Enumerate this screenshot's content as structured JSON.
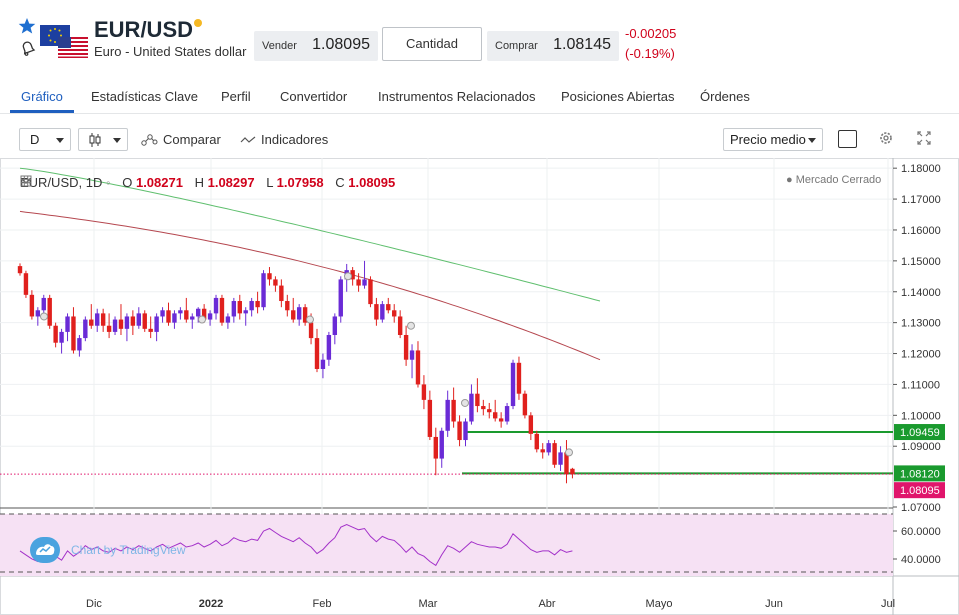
{
  "header": {
    "symbol": "EUR/USD",
    "description": "Euro - United States dollar",
    "sell_label": "Vender",
    "sell_price": "1.08095",
    "quantity_label": "Cantidad",
    "buy_label": "Comprar",
    "buy_price": "1.08145",
    "change_abs": "-0.00205",
    "change_pct": "(-0.19%)",
    "status_dot_color": "#f5b823"
  },
  "tabs": [
    {
      "label": "Gráfico",
      "active": true
    },
    {
      "label": "Estadísticas Clave"
    },
    {
      "label": "Perfil"
    },
    {
      "label": "Convertidor"
    },
    {
      "label": "Instrumentos Relacionados"
    },
    {
      "label": "Posiciones Abiertas"
    },
    {
      "label": "Órdenes"
    }
  ],
  "toolbar": {
    "interval": "D",
    "compare_label": "Comparar",
    "indicators_label": "Indicadores",
    "price_type": "Precio medio"
  },
  "chart_legend": {
    "title": "EUR/USD, 1D",
    "o_key": "O",
    "o_val": "1.08271",
    "h_key": "H",
    "h_val": "1.08297",
    "l_key": "L",
    "l_val": "1.07958",
    "c_key": "C",
    "c_val": "1.08095",
    "market_status": "● Mercado Cerrado",
    "watermark": "Chart by TradingView"
  },
  "chart_data": {
    "type": "candlestick",
    "y_axis_ticks": [
      "1.18000",
      "1.17000",
      "1.16000",
      "1.15000",
      "1.14000",
      "1.13000",
      "1.12000",
      "1.11000",
      "1.10000",
      "1.09000",
      "1.07000"
    ],
    "price_labels": [
      {
        "value": "1.09459",
        "color": "#1a9a2e"
      },
      {
        "value": "1.08120",
        "color": "#1a9a2e"
      },
      {
        "value": "1.08095",
        "color": "#e0156b"
      }
    ],
    "rsi_ticks": [
      "60.0000",
      "40.0000"
    ],
    "x_labels": [
      "Dic",
      "2022",
      "Feb",
      "Mar",
      "Abr",
      "Mayo",
      "Jun",
      "Jul"
    ],
    "ylim": [
      1.07,
      1.182
    ],
    "candles": [
      [
        1.1483,
        1.1492,
        1.1452,
        1.146
      ],
      [
        1.146,
        1.1468,
        1.138,
        1.139
      ],
      [
        1.139,
        1.1405,
        1.131,
        1.132
      ],
      [
        1.132,
        1.135,
        1.129,
        1.134
      ],
      [
        1.134,
        1.139,
        1.132,
        1.138
      ],
      [
        1.138,
        1.139,
        1.128,
        1.129
      ],
      [
        1.129,
        1.13,
        1.122,
        1.1235
      ],
      [
        1.1235,
        1.128,
        1.12,
        1.127
      ],
      [
        1.127,
        1.133,
        1.124,
        1.132
      ],
      [
        1.132,
        1.135,
        1.12,
        1.121
      ],
      [
        1.121,
        1.126,
        1.119,
        1.125
      ],
      [
        1.125,
        1.132,
        1.124,
        1.131
      ],
      [
        1.131,
        1.136,
        1.128,
        1.129
      ],
      [
        1.129,
        1.1345,
        1.127,
        1.133
      ],
      [
        1.133,
        1.1345,
        1.127,
        1.129
      ],
      [
        1.129,
        1.133,
        1.125,
        1.127
      ],
      [
        1.127,
        1.132,
        1.126,
        1.131
      ],
      [
        1.131,
        1.136,
        1.126,
        1.128
      ],
      [
        1.128,
        1.133,
        1.124,
        1.132
      ],
      [
        1.132,
        1.134,
        1.126,
        1.129
      ],
      [
        1.129,
        1.135,
        1.128,
        1.133
      ],
      [
        1.133,
        1.134,
        1.127,
        1.128
      ],
      [
        1.128,
        1.132,
        1.125,
        1.127
      ],
      [
        1.127,
        1.133,
        1.124,
        1.132
      ],
      [
        1.132,
        1.135,
        1.13,
        1.134
      ],
      [
        1.134,
        1.1365,
        1.129,
        1.13
      ],
      [
        1.13,
        1.134,
        1.128,
        1.133
      ],
      [
        1.133,
        1.135,
        1.131,
        1.134
      ],
      [
        1.134,
        1.138,
        1.13,
        1.131
      ],
      [
        1.131,
        1.133,
        1.128,
        1.132
      ],
      [
        1.132,
        1.135,
        1.13,
        1.1345
      ],
      [
        1.1345,
        1.136,
        1.13,
        1.131
      ],
      [
        1.131,
        1.134,
        1.129,
        1.133
      ],
      [
        1.133,
        1.139,
        1.131,
        1.138
      ],
      [
        1.138,
        1.139,
        1.129,
        1.13
      ],
      [
        1.13,
        1.133,
        1.128,
        1.132
      ],
      [
        1.132,
        1.138,
        1.13,
        1.137
      ],
      [
        1.137,
        1.139,
        1.131,
        1.133
      ],
      [
        1.133,
        1.135,
        1.129,
        1.134
      ],
      [
        1.134,
        1.138,
        1.132,
        1.137
      ],
      [
        1.137,
        1.14,
        1.133,
        1.135
      ],
      [
        1.135,
        1.147,
        1.134,
        1.146
      ],
      [
        1.146,
        1.148,
        1.142,
        1.144
      ],
      [
        1.144,
        1.145,
        1.14,
        1.142
      ],
      [
        1.142,
        1.144,
        1.135,
        1.137
      ],
      [
        1.137,
        1.139,
        1.132,
        1.134
      ],
      [
        1.134,
        1.138,
        1.13,
        1.131
      ],
      [
        1.131,
        1.136,
        1.129,
        1.135
      ],
      [
        1.135,
        1.136,
        1.129,
        1.13
      ],
      [
        1.13,
        1.133,
        1.123,
        1.125
      ],
      [
        1.125,
        1.128,
        1.114,
        1.115
      ],
      [
        1.115,
        1.12,
        1.112,
        1.118
      ],
      [
        1.118,
        1.127,
        1.116,
        1.126
      ],
      [
        1.126,
        1.133,
        1.123,
        1.132
      ],
      [
        1.132,
        1.145,
        1.13,
        1.144
      ],
      [
        1.144,
        1.149,
        1.14,
        1.147
      ],
      [
        1.147,
        1.148,
        1.142,
        1.144
      ],
      [
        1.144,
        1.146,
        1.14,
        1.142
      ],
      [
        1.142,
        1.15,
        1.141,
        1.144
      ],
      [
        1.144,
        1.145,
        1.135,
        1.136
      ],
      [
        1.136,
        1.138,
        1.129,
        1.131
      ],
      [
        1.131,
        1.137,
        1.13,
        1.136
      ],
      [
        1.136,
        1.138,
        1.133,
        1.134
      ],
      [
        1.134,
        1.136,
        1.13,
        1.132
      ],
      [
        1.132,
        1.134,
        1.125,
        1.126
      ],
      [
        1.126,
        1.129,
        1.116,
        1.118
      ],
      [
        1.118,
        1.123,
        1.112,
        1.121
      ],
      [
        1.121,
        1.124,
        1.109,
        1.11
      ],
      [
        1.11,
        1.113,
        1.102,
        1.105
      ],
      [
        1.105,
        1.108,
        1.092,
        1.093
      ],
      [
        1.093,
        1.096,
        1.0806,
        1.086
      ],
      [
        1.086,
        1.096,
        1.083,
        1.095
      ],
      [
        1.095,
        1.108,
        1.093,
        1.105
      ],
      [
        1.105,
        1.109,
        1.096,
        1.098
      ],
      [
        1.098,
        1.1,
        1.09,
        1.092
      ],
      [
        1.092,
        1.099,
        1.09,
        1.098
      ],
      [
        1.098,
        1.11,
        1.097,
        1.107
      ],
      [
        1.107,
        1.112,
        1.101,
        1.103
      ],
      [
        1.103,
        1.105,
        1.1,
        1.102
      ],
      [
        1.102,
        1.104,
        1.099,
        1.101
      ],
      [
        1.101,
        1.105,
        1.098,
        1.099
      ],
      [
        1.099,
        1.101,
        1.096,
        1.098
      ],
      [
        1.098,
        1.104,
        1.097,
        1.103
      ],
      [
        1.103,
        1.118,
        1.102,
        1.117
      ],
      [
        1.117,
        1.119,
        1.105,
        1.107
      ],
      [
        1.107,
        1.108,
        1.099,
        1.1
      ],
      [
        1.1,
        1.101,
        1.092,
        1.094
      ],
      [
        1.094,
        1.095,
        1.088,
        1.089
      ],
      [
        1.089,
        1.091,
        1.086,
        1.088
      ],
      [
        1.088,
        1.092,
        1.087,
        1.091
      ],
      [
        1.091,
        1.092,
        1.083,
        1.084
      ],
      [
        1.084,
        1.09,
        1.082,
        1.088
      ],
      [
        1.088,
        1.092,
        1.078,
        1.081
      ],
      [
        1.0827,
        1.083,
        1.0796,
        1.081
      ]
    ],
    "ma_fast_color": "#5fbf6e",
    "ma_slow_color": "#b5474f",
    "rsi": [
      44,
      41,
      38,
      36,
      39,
      42,
      40,
      37,
      44,
      40,
      43,
      48,
      45,
      47,
      44,
      43,
      46,
      44,
      47,
      45,
      48,
      46,
      44,
      47,
      49,
      46,
      48,
      50,
      47,
      48,
      50,
      47,
      49,
      52,
      48,
      50,
      54,
      52,
      51,
      53,
      52,
      59,
      61,
      58,
      55,
      53,
      51,
      54,
      50,
      47,
      42,
      45,
      50,
      54,
      62,
      64,
      62,
      60,
      61,
      55,
      51,
      55,
      53,
      52,
      48,
      43,
      47,
      42,
      40,
      36,
      33,
      41,
      48,
      46,
      43,
      47,
      51,
      49,
      48,
      47,
      47,
      46,
      49,
      57,
      53,
      49,
      45,
      43,
      44,
      44,
      41,
      45,
      43,
      44
    ]
  }
}
